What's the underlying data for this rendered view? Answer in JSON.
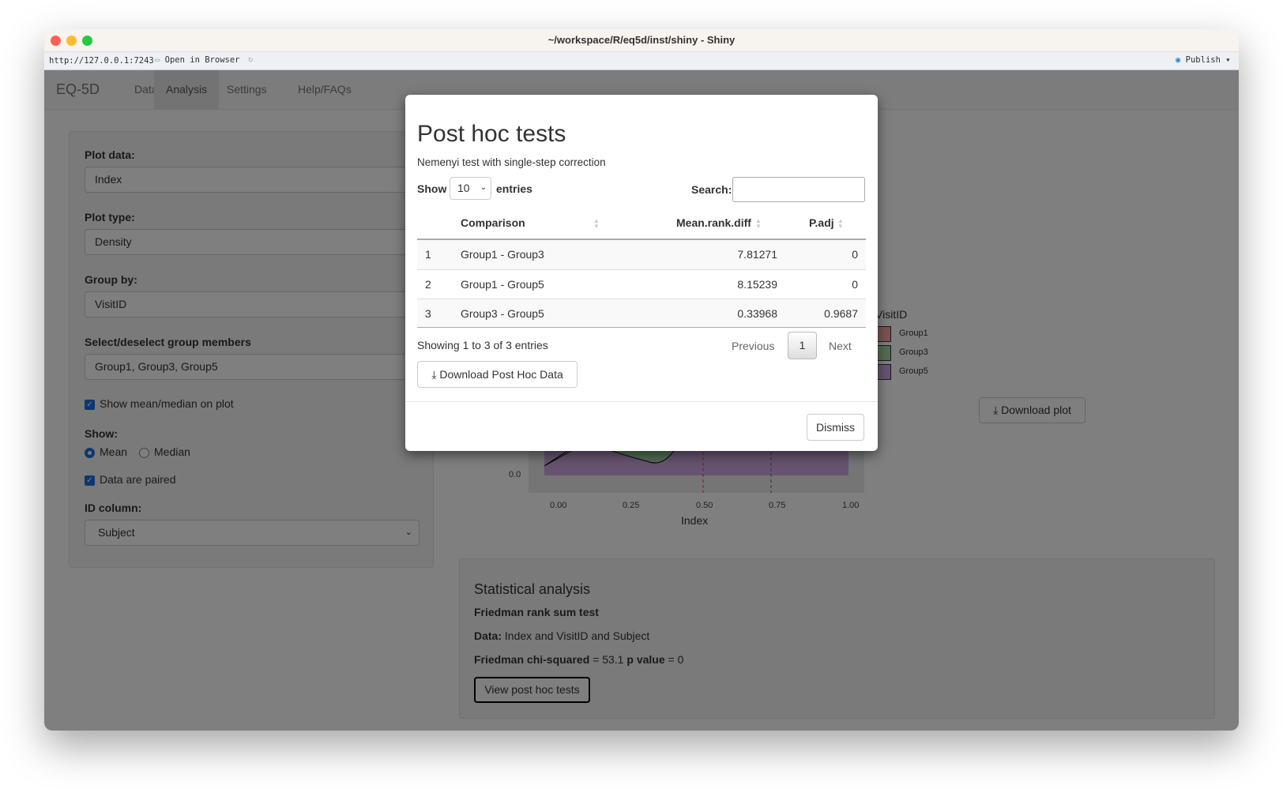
{
  "window": {
    "title": "~/workspace/R/eq5d/inst/shiny - Shiny",
    "url": "http://127.0.0.1:7243",
    "open_in_browser": "Open in Browser",
    "publish": "Publish"
  },
  "navbar": {
    "brand": "EQ-5D",
    "tabs": [
      {
        "label": "Data"
      },
      {
        "label": "Analysis",
        "active": true
      },
      {
        "label": "Settings"
      },
      {
        "label": "Help/FAQs"
      }
    ]
  },
  "sidebar": {
    "plot_data": {
      "label": "Plot data:",
      "value": "Index"
    },
    "plot_type": {
      "label": "Plot type:",
      "value": "Density"
    },
    "group_by": {
      "label": "Group by:",
      "value": "VisitID"
    },
    "group_members": {
      "label": "Select/deselect group members",
      "value": "Group1, Group3, Group5"
    },
    "show_mean_median": {
      "label": "Show mean/median on plot",
      "checked": true
    },
    "show": {
      "label": "Show:",
      "options": [
        "Mean",
        "Median"
      ],
      "selected": "Mean"
    },
    "paired": {
      "label": "Data are paired",
      "checked": true
    },
    "id_column": {
      "label": "ID column:",
      "value": "Subject"
    }
  },
  "plot": {
    "y_tick": "0.0",
    "x_ticks": [
      "0.00",
      "0.25",
      "0.50",
      "0.75",
      "1.00"
    ],
    "xlabel": "Index",
    "legend_title": "VisitID",
    "legend": [
      {
        "name": "Group1",
        "color": "#f4a6a0"
      },
      {
        "name": "Group3",
        "color": "#a6d7a8"
      },
      {
        "name": "Group5",
        "color": "#cfa6e0"
      }
    ],
    "download_label": "Download plot"
  },
  "stats": {
    "title": "Statistical analysis",
    "test": "Friedman rank sum test",
    "data_label": "Data:",
    "data_value": "Index and VisitID and Subject",
    "chi_label": "Friedman chi-squared",
    "chi_value": "= 53.1",
    "p_label": "p value",
    "p_value": "= 0",
    "button": "View post hoc tests"
  },
  "modal": {
    "title": "Post hoc tests",
    "subtitle": "Nemenyi test with single-step correction",
    "show": "Show",
    "entries_value": "10",
    "entries": "entries",
    "search_label": "Search:",
    "search_value": "",
    "columns": [
      "",
      "Comparison",
      "Mean.rank.diff",
      "P.adj"
    ],
    "rows": [
      [
        "1",
        "Group1 - Group3",
        "7.81271",
        "0"
      ],
      [
        "2",
        "Group1 - Group5",
        "8.15239",
        "0"
      ],
      [
        "3",
        "Group3 - Group5",
        "0.33968",
        "0.9687"
      ]
    ],
    "info": "Showing 1 to 3 of 3 entries",
    "previous": "Previous",
    "page": "1",
    "next": "Next",
    "download": "Download Post Hoc Data",
    "dismiss": "Dismiss"
  }
}
